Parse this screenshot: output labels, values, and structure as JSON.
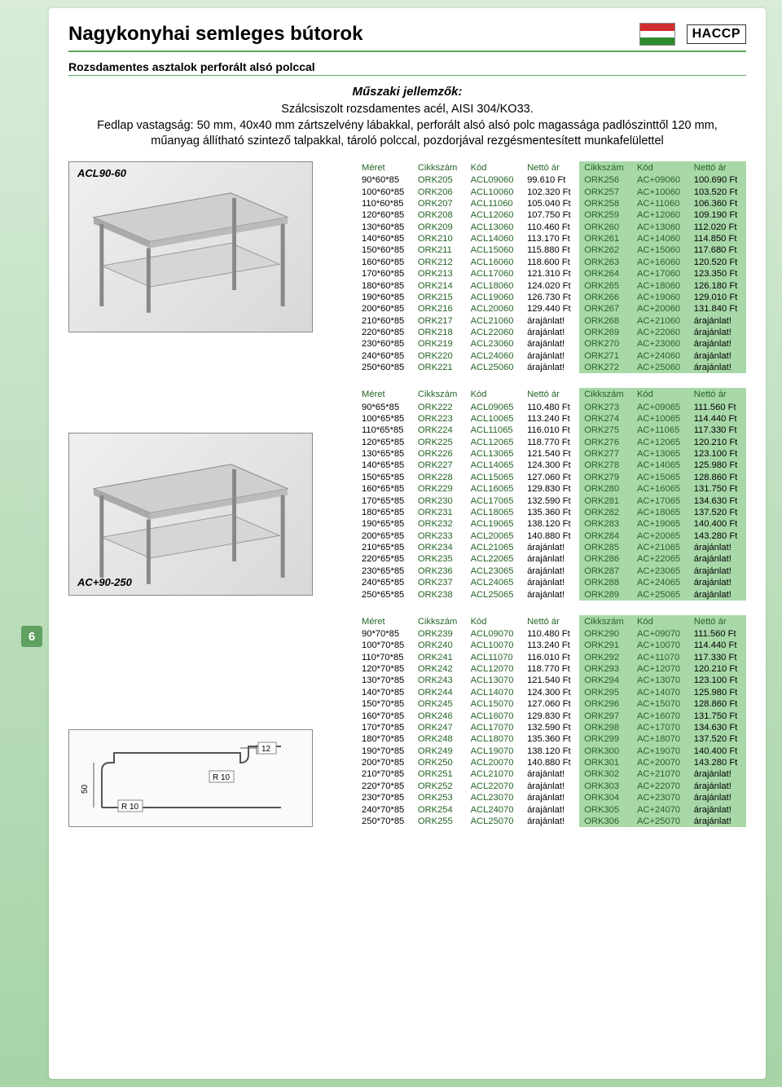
{
  "header": {
    "title": "Nagykonyhai semleges bútorok",
    "subtitle": "Rozsdamentes asztalok perforált alsó polccal",
    "haccp": "HACCP",
    "flag_colors": [
      "#d22e2e",
      "#ffffff",
      "#2e8a2e"
    ]
  },
  "specs": {
    "heading": "Műszaki jellemzők:",
    "line1": "Szálcsiszolt rozsdamentes acél, AISI 304/KO33.",
    "line2": "Fedlap vastagság: 50 mm, 40x40 mm zárt­szelvény lábakkal, perforált alsó alsó polc magassága padlószinttől 120 mm, műanyag állítható szintező talpakkal, tároló polccal, pozdorjával rezgésmentesített munkafelülettel"
  },
  "table_headers": [
    "Méret",
    "Cikkszám",
    "Kód",
    "Nettó ár",
    "Cikkszám",
    "Kód",
    "Nettó ár"
  ],
  "image_labels": {
    "a": "ACL90-60",
    "b": "AC+90-250"
  },
  "profile_labels": {
    "t12": "12",
    "r10a": "R 10",
    "r10b": "R 10",
    "h50": "50"
  },
  "page_number": "6",
  "table1": [
    [
      "90*60*85",
      "ORK205",
      "ACL09060",
      "99.610 Ft",
      "ORK256",
      "AC+09060",
      "100.690 Ft"
    ],
    [
      "100*60*85",
      "ORK206",
      "ACL10060",
      "102.320 Ft",
      "ORK257",
      "AC+10060",
      "103.520 Ft"
    ],
    [
      "110*60*85",
      "ORK207",
      "ACL11060",
      "105.040 Ft",
      "ORK258",
      "AC+11060",
      "106.360 Ft"
    ],
    [
      "120*60*85",
      "ORK208",
      "ACL12060",
      "107.750 Ft",
      "ORK259",
      "AC+12060",
      "109.190 Ft"
    ],
    [
      "130*60*85",
      "ORK209",
      "ACL13060",
      "110.460 Ft",
      "ORK260",
      "AC+13060",
      "112.020 Ft"
    ],
    [
      "140*60*85",
      "ORK210",
      "ACL14060",
      "113.170 Ft",
      "ORK261",
      "AC+14060",
      "114.850 Ft"
    ],
    [
      "150*60*85",
      "ORK211",
      "ACL15060",
      "115.880 Ft",
      "ORK262",
      "AC+15060",
      "117.680 Ft"
    ],
    [
      "160*60*85",
      "ORK212",
      "ACL16060",
      "118.600 Ft",
      "ORK263",
      "AC+16060",
      "120.520 Ft"
    ],
    [
      "170*60*85",
      "ORK213",
      "ACL17060",
      "121.310 Ft",
      "ORK264",
      "AC+17060",
      "123.350 Ft"
    ],
    [
      "180*60*85",
      "ORK214",
      "ACL18060",
      "124.020 Ft",
      "ORK265",
      "AC+18060",
      "126.180 Ft"
    ],
    [
      "190*60*85",
      "ORK215",
      "ACL19060",
      "126.730 Ft",
      "ORK266",
      "AC+19060",
      "129.010 Ft"
    ],
    [
      "200*60*85",
      "ORK216",
      "ACL20060",
      "129.440 Ft",
      "ORK267",
      "AC+20060",
      "131.840 Ft"
    ],
    [
      "210*60*85",
      "ORK217",
      "ACL21060",
      "árajánlat!",
      "ORK268",
      "AC+21060",
      "árajánlat!"
    ],
    [
      "220*60*85",
      "ORK218",
      "ACL22060",
      "árajánlat!",
      "ORK269",
      "AC+22060",
      "árajánlat!"
    ],
    [
      "230*60*85",
      "ORK219",
      "ACL23060",
      "árajánlat!",
      "ORK270",
      "AC+23060",
      "árajánlat!"
    ],
    [
      "240*60*85",
      "ORK220",
      "ACL24060",
      "árajánlat!",
      "ORK271",
      "AC+24060",
      "árajánlat!"
    ],
    [
      "250*60*85",
      "ORK221",
      "ACL25060",
      "árajánlat!",
      "ORK272",
      "AC+25060",
      "árajánlat!"
    ]
  ],
  "table2": [
    [
      "90*65*85",
      "ORK222",
      "ACL09065",
      "110.480 Ft",
      "ORK273",
      "AC+09065",
      "111.560 Ft"
    ],
    [
      "100*65*85",
      "ORK223",
      "ACL10065",
      "113.240 Ft",
      "ORK274",
      "AC+10065",
      "114.440 Ft"
    ],
    [
      "110*65*85",
      "ORK224",
      "ACL11065",
      "116.010 Ft",
      "ORK275",
      "AC+11065",
      "117.330 Ft"
    ],
    [
      "120*65*85",
      "ORK225",
      "ACL12065",
      "118.770 Ft",
      "ORK276",
      "AC+12065",
      "120.210 Ft"
    ],
    [
      "130*65*85",
      "ORK226",
      "ACL13065",
      "121.540 Ft",
      "ORK277",
      "AC+13065",
      "123.100 Ft"
    ],
    [
      "140*65*85",
      "ORK227",
      "ACL14065",
      "124.300 Ft",
      "ORK278",
      "AC+14065",
      "125.980 Ft"
    ],
    [
      "150*65*85",
      "ORK228",
      "ACL15065",
      "127.060 Ft",
      "ORK279",
      "AC+15065",
      "128.860 Ft"
    ],
    [
      "160*65*85",
      "ORK229",
      "ACL16065",
      "129.830 Ft",
      "ORK280",
      "AC+16065",
      "131.750 Ft"
    ],
    [
      "170*65*85",
      "ORK230",
      "ACL17065",
      "132.590 Ft",
      "ORK281",
      "AC+17065",
      "134.630 Ft"
    ],
    [
      "180*65*85",
      "ORK231",
      "ACL18065",
      "135.360 Ft",
      "ORK282",
      "AC+18065",
      "137.520 Ft"
    ],
    [
      "190*65*85",
      "ORK232",
      "ACL19065",
      "138.120 Ft",
      "ORK283",
      "AC+19065",
      "140.400 Ft"
    ],
    [
      "200*65*85",
      "ORK233",
      "ACL20065",
      "140.880 Ft",
      "ORK284",
      "AC+20065",
      "143.280 Ft"
    ],
    [
      "210*65*85",
      "ORK234",
      "ACL21065",
      "árajánlat!",
      "ORK285",
      "AC+21065",
      "árajánlat!"
    ],
    [
      "220*65*85",
      "ORK235",
      "ACL22065",
      "árajánlat!",
      "ORK286",
      "AC+22065",
      "árajánlat!"
    ],
    [
      "230*65*85",
      "ORK236",
      "ACL23065",
      "árajánlat!",
      "ORK287",
      "AC+23065",
      "árajánlat!"
    ],
    [
      "240*65*85",
      "ORK237",
      "ACL24065",
      "árajánlat!",
      "ORK288",
      "AC+24065",
      "árajánlat!"
    ],
    [
      "250*65*85",
      "ORK238",
      "ACL25065",
      "árajánlat!",
      "ORK289",
      "AC+25065",
      "árajánlat!"
    ]
  ],
  "table3": [
    [
      "90*70*85",
      "ORK239",
      "ACL09070",
      "110.480 Ft",
      "ORK290",
      "AC+09070",
      "111.560 Ft"
    ],
    [
      "100*70*85",
      "ORK240",
      "ACL10070",
      "113.240 Ft",
      "ORK291",
      "AC+10070",
      "114.440 Ft"
    ],
    [
      "110*70*85",
      "ORK241",
      "ACL11070",
      "116.010 Ft",
      "ORK292",
      "AC+11070",
      "117.330 Ft"
    ],
    [
      "120*70*85",
      "ORK242",
      "ACL12070",
      "118.770 Ft",
      "ORK293",
      "AC+12070",
      "120.210 Ft"
    ],
    [
      "130*70*85",
      "ORK243",
      "ACL13070",
      "121.540 Ft",
      "ORK294",
      "AC+13070",
      "123.100 Ft"
    ],
    [
      "140*70*85",
      "ORK244",
      "ACL14070",
      "124.300 Ft",
      "ORK295",
      "AC+14070",
      "125.980 Ft"
    ],
    [
      "150*70*85",
      "ORK245",
      "ACL15070",
      "127.060 Ft",
      "ORK296",
      "AC+15070",
      "128.860 Ft"
    ],
    [
      "160*70*85",
      "ORK246",
      "ACL16070",
      "129.830 Ft",
      "ORK297",
      "AC+16070",
      "131.750 Ft"
    ],
    [
      "170*70*85",
      "ORK247",
      "ACL17070",
      "132.590 Ft",
      "ORK298",
      "AC+17070",
      "134.630 Ft"
    ],
    [
      "180*70*85",
      "ORK248",
      "ACL18070",
      "135.360 Ft",
      "ORK299",
      "AC+18070",
      "137.520 Ft"
    ],
    [
      "190*70*85",
      "ORK249",
      "ACL19070",
      "138.120 Ft",
      "ORK300",
      "AC+19070",
      "140.400 Ft"
    ],
    [
      "200*70*85",
      "ORK250",
      "ACL20070",
      "140.880 Ft",
      "ORK301",
      "AC+20070",
      "143.280 Ft"
    ],
    [
      "210*70*85",
      "ORK251",
      "ACL21070",
      "árajánlat!",
      "ORK302",
      "AC+21070",
      "árajánlat!"
    ],
    [
      "220*70*85",
      "ORK252",
      "ACL22070",
      "árajánlat!",
      "ORK303",
      "AC+22070",
      "árajánlat!"
    ],
    [
      "230*70*85",
      "ORK253",
      "ACL23070",
      "árajánlat!",
      "ORK304",
      "AC+23070",
      "árajánlat!"
    ],
    [
      "240*70*85",
      "ORK254",
      "ACL24070",
      "árajánlat!",
      "ORK305",
      "AC+24070",
      "árajánlat!"
    ],
    [
      "250*70*85",
      "ORK255",
      "ACL25070",
      "árajánlat!",
      "ORK306",
      "AC+25070",
      "árajánlat!"
    ]
  ]
}
